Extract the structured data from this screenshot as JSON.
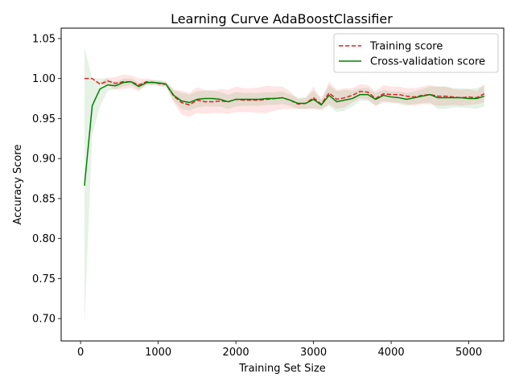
{
  "chart_data": {
    "type": "line",
    "title": "Learning Curve AdaBoostClassifier",
    "xlabel": "Training Set Size",
    "ylabel": "Accuracy Score",
    "xlim": [
      -250,
      5450
    ],
    "ylim": [
      0.672,
      1.063
    ],
    "xticks": [
      0,
      1000,
      2000,
      3000,
      4000,
      5000
    ],
    "yticks": [
      0.7,
      0.75,
      0.8,
      0.85,
      0.9,
      0.95,
      1.0,
      1.05
    ],
    "ytick_labels": [
      "0.70",
      "0.75",
      "0.80",
      "0.85",
      "0.90",
      "0.95",
      "1.00",
      "1.05"
    ],
    "legend_position": "top-right",
    "grid": false,
    "x": [
      50,
      150,
      250,
      350,
      450,
      550,
      650,
      750,
      850,
      950,
      1050,
      1100,
      1200,
      1300,
      1400,
      1500,
      1600,
      1700,
      1800,
      1900,
      2000,
      2100,
      2200,
      2300,
      2400,
      2500,
      2600,
      2700,
      2800,
      2900,
      3000,
      3100,
      3200,
      3300,
      3400,
      3500,
      3600,
      3700,
      3800,
      3900,
      4000,
      4100,
      4200,
      4300,
      4400,
      4500,
      4600,
      4700,
      4800,
      4900,
      5000,
      5100,
      5200
    ],
    "series": [
      {
        "name": "Training score",
        "color": "#ff0000",
        "line_color": "#d62728",
        "style": "dashed",
        "values": [
          1.0,
          1.0,
          0.993,
          0.997,
          0.994,
          0.996,
          0.996,
          0.992,
          0.996,
          0.995,
          0.993,
          0.993,
          0.978,
          0.97,
          0.967,
          0.973,
          0.971,
          0.971,
          0.972,
          0.971,
          0.974,
          0.973,
          0.973,
          0.973,
          0.974,
          0.975,
          0.976,
          0.973,
          0.968,
          0.969,
          0.976,
          0.968,
          0.982,
          0.974,
          0.976,
          0.979,
          0.984,
          0.983,
          0.975,
          0.981,
          0.98,
          0.98,
          0.978,
          0.977,
          0.979,
          0.98,
          0.978,
          0.978,
          0.977,
          0.976,
          0.977,
          0.976,
          0.981
        ],
        "std_lo": [
          1.0,
          1.0,
          0.993,
          0.992,
          0.986,
          0.987,
          0.988,
          0.984,
          0.992,
          0.992,
          0.99,
          0.99,
          0.97,
          0.955,
          0.952,
          0.957,
          0.956,
          0.957,
          0.957,
          0.956,
          0.958,
          0.958,
          0.958,
          0.957,
          0.957,
          0.96,
          0.962,
          0.962,
          0.962,
          0.962,
          0.962,
          0.962,
          0.968,
          0.962,
          0.964,
          0.97,
          0.975,
          0.974,
          0.966,
          0.97,
          0.97,
          0.97,
          0.968,
          0.966,
          0.968,
          0.968,
          0.966,
          0.966,
          0.967,
          0.966,
          0.967,
          0.968,
          0.97
        ],
        "std_hi": [
          1.0,
          1.0,
          0.995,
          1.001,
          1.002,
          1.005,
          1.004,
          1.0,
          1.0,
          0.998,
          0.996,
          0.996,
          0.986,
          0.985,
          0.982,
          0.989,
          0.986,
          0.985,
          0.987,
          0.986,
          0.99,
          0.988,
          0.988,
          0.989,
          0.991,
          0.99,
          0.99,
          0.984,
          0.974,
          0.976,
          0.99,
          0.974,
          0.996,
          0.986,
          0.988,
          0.988,
          0.993,
          0.992,
          0.984,
          0.992,
          0.99,
          0.99,
          0.988,
          0.988,
          0.99,
          0.992,
          0.99,
          0.99,
          0.987,
          0.986,
          0.987,
          0.984,
          0.993
        ]
      },
      {
        "name": "Cross-validation score",
        "color": "#008000",
        "line_color": "#008000",
        "style": "solid",
        "values": [
          0.866,
          0.966,
          0.987,
          0.992,
          0.991,
          0.995,
          0.996,
          0.99,
          0.995,
          0.995,
          0.994,
          0.993,
          0.979,
          0.972,
          0.97,
          0.974,
          0.975,
          0.975,
          0.974,
          0.971,
          0.974,
          0.974,
          0.974,
          0.974,
          0.975,
          0.975,
          0.976,
          0.973,
          0.969,
          0.969,
          0.974,
          0.967,
          0.979,
          0.971,
          0.973,
          0.975,
          0.98,
          0.98,
          0.974,
          0.979,
          0.977,
          0.976,
          0.974,
          0.976,
          0.978,
          0.98,
          0.976,
          0.976,
          0.976,
          0.976,
          0.975,
          0.975,
          0.978
        ],
        "std_lo": [
          0.691,
          0.93,
          0.965,
          0.985,
          0.987,
          0.99,
          0.992,
          0.986,
          0.992,
          0.992,
          0.99,
          0.99,
          0.972,
          0.962,
          0.96,
          0.964,
          0.965,
          0.965,
          0.965,
          0.962,
          0.965,
          0.966,
          0.966,
          0.966,
          0.967,
          0.967,
          0.968,
          0.966,
          0.962,
          0.962,
          0.963,
          0.96,
          0.966,
          0.958,
          0.96,
          0.965,
          0.972,
          0.972,
          0.966,
          0.972,
          0.97,
          0.968,
          0.966,
          0.968,
          0.969,
          0.97,
          0.962,
          0.962,
          0.964,
          0.964,
          0.963,
          0.962,
          0.965
        ],
        "std_hi": [
          1.039,
          1.0,
          1.0,
          1.0,
          0.995,
          1.0,
          1.0,
          0.994,
          0.998,
          0.998,
          0.998,
          0.996,
          0.986,
          0.982,
          0.98,
          0.984,
          0.985,
          0.985,
          0.983,
          0.98,
          0.983,
          0.982,
          0.982,
          0.982,
          0.983,
          0.983,
          0.984,
          0.98,
          0.976,
          0.976,
          0.985,
          0.974,
          0.992,
          0.984,
          0.986,
          0.985,
          0.988,
          0.988,
          0.982,
          0.986,
          0.984,
          0.984,
          0.982,
          0.984,
          0.987,
          0.99,
          0.99,
          0.99,
          0.988,
          0.988,
          0.987,
          0.988,
          0.991
        ]
      }
    ]
  }
}
